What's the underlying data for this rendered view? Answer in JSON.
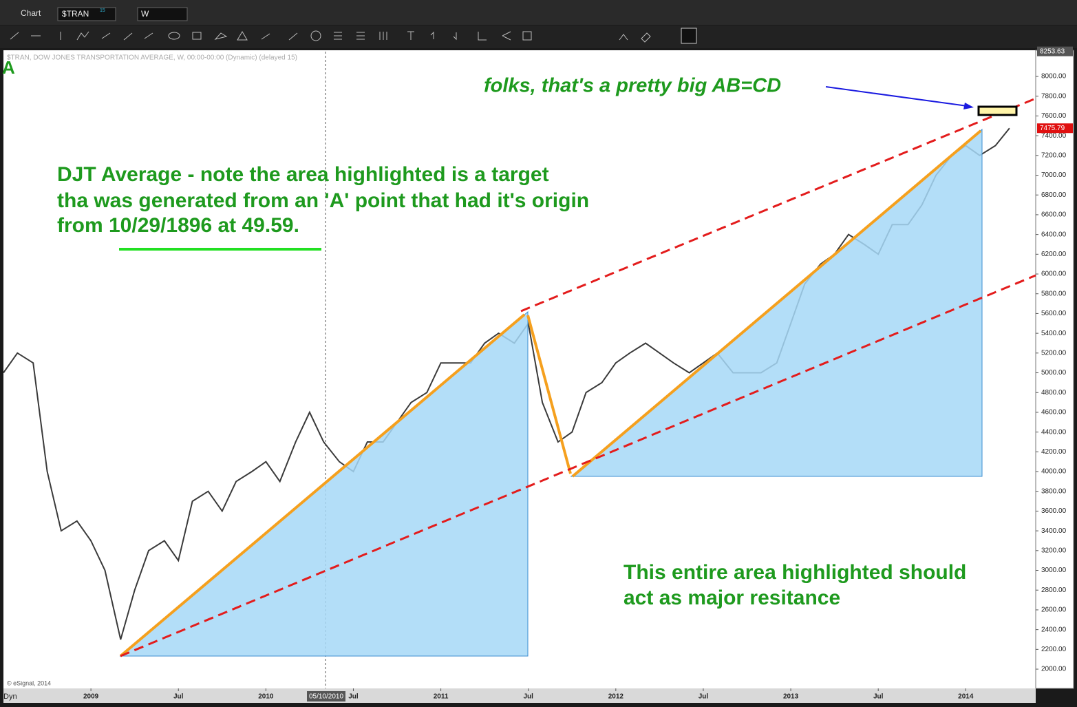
{
  "ui": {
    "window_title": "Chart",
    "symbol": "$TRAN",
    "symbol_badge": "15",
    "interval": "W",
    "mode": "Dyn",
    "corner_letter": "A",
    "copyright": "© eSignal, 2014",
    "cursor_date": "05/10/2010"
  },
  "chart_data": {
    "type": "line",
    "title": "$TRAN, DOW JONES TRANSPORTATION AVERAGE, W, 00:00-00:00 (Dynamic) (delayed 15)",
    "color": "#3a3a3a",
    "x": [
      2008.5,
      2008.58,
      2008.67,
      2008.75,
      2008.83,
      2008.92,
      2009.0,
      2009.08,
      2009.17,
      2009.25,
      2009.33,
      2009.42,
      2009.5,
      2009.58,
      2009.67,
      2009.75,
      2009.83,
      2009.92,
      2010.0,
      2010.08,
      2010.17,
      2010.25,
      2010.33,
      2010.42,
      2010.5,
      2010.58,
      2010.67,
      2010.75,
      2010.83,
      2010.92,
      2011.0,
      2011.08,
      2011.17,
      2011.25,
      2011.33,
      2011.42,
      2011.5,
      2011.58,
      2011.67,
      2011.75,
      2011.83,
      2011.92,
      2012.0,
      2012.08,
      2012.17,
      2012.25,
      2012.33,
      2012.42,
      2012.5,
      2012.58,
      2012.67,
      2012.75,
      2012.83,
      2012.92,
      2013.0,
      2013.08,
      2013.17,
      2013.25,
      2013.33,
      2013.42,
      2013.5,
      2013.58,
      2013.67,
      2013.75,
      2013.83,
      2013.92,
      2014.0,
      2014.08,
      2014.17,
      2014.25
    ],
    "values": [
      5000,
      5200,
      5100,
      4000,
      3400,
      3500,
      3300,
      3000,
      2300,
      2800,
      3200,
      3300,
      3100,
      3700,
      3800,
      3600,
      3900,
      4000,
      4100,
      3900,
      4300,
      4600,
      4300,
      4100,
      4000,
      4300,
      4300,
      4500,
      4700,
      4800,
      5100,
      5100,
      5100,
      5300,
      5400,
      5300,
      5500,
      4700,
      4300,
      4400,
      4800,
      4900,
      5100,
      5200,
      5300,
      5200,
      5100,
      5000,
      5100,
      5200,
      5000,
      5000,
      5000,
      5100,
      5500,
      5900,
      6100,
      6200,
      6400,
      6300,
      6200,
      6500,
      6500,
      6700,
      7000,
      7200,
      7300,
      7200,
      7300,
      7475.79
    ],
    "last_price": 7475.79,
    "high_price": 8253.63,
    "xlim": [
      2008.5,
      2014.4
    ],
    "ylim": [
      1805,
      8265
    ],
    "xticks": [
      {
        "value": 2009,
        "label": "2009"
      },
      {
        "value": 2009.5,
        "label": "Jul"
      },
      {
        "value": 2010,
        "label": "2010"
      },
      {
        "value": 2010.5,
        "label": "Jul"
      },
      {
        "value": 2011,
        "label": "2011"
      },
      {
        "value": 2011.5,
        "label": "Jul"
      },
      {
        "value": 2012,
        "label": "2012"
      },
      {
        "value": 2012.5,
        "label": "Jul"
      },
      {
        "value": 2013,
        "label": "2013"
      },
      {
        "value": 2013.5,
        "label": "Jul"
      },
      {
        "value": 2014,
        "label": "2014"
      }
    ],
    "yticks": [
      {
        "value": 2000,
        "label": "2000.00"
      },
      {
        "value": 2200,
        "label": "2200.00"
      },
      {
        "value": 2400,
        "label": "2400.00"
      },
      {
        "value": 2600,
        "label": "2600.00"
      },
      {
        "value": 2800,
        "label": "2800.00"
      },
      {
        "value": 3000,
        "label": "3000.00"
      },
      {
        "value": 3200,
        "label": "3200.00"
      },
      {
        "value": 3400,
        "label": "3400.00"
      },
      {
        "value": 3600,
        "label": "3600.00"
      },
      {
        "value": 3800,
        "label": "3800.00"
      },
      {
        "value": 4000,
        "label": "4000.00"
      },
      {
        "value": 4200,
        "label": "4200.00"
      },
      {
        "value": 4400,
        "label": "4400.00"
      },
      {
        "value": 4600,
        "label": "4600.00"
      },
      {
        "value": 4800,
        "label": "4800.00"
      },
      {
        "value": 5000,
        "label": "5000.00"
      },
      {
        "value": 5200,
        "label": "5200.00"
      },
      {
        "value": 5400,
        "label": "5400.00"
      },
      {
        "value": 5600,
        "label": "5600.00"
      },
      {
        "value": 5800,
        "label": "5800.00"
      },
      {
        "value": 6000,
        "label": "6000.00"
      },
      {
        "value": 6200,
        "label": "6200.00"
      },
      {
        "value": 6400,
        "label": "6400.00"
      },
      {
        "value": 6600,
        "label": "6600.00"
      },
      {
        "value": 6800,
        "label": "6800.00"
      },
      {
        "value": 7000,
        "label": "7000.00"
      },
      {
        "value": 7200,
        "label": "7200.00"
      },
      {
        "value": 7400,
        "label": "7400.00"
      },
      {
        "value": 7600,
        "label": "7600.00"
      },
      {
        "value": 7800,
        "label": "7800.00"
      },
      {
        "value": 8000,
        "label": "8000.00"
      }
    ],
    "annotations": [
      "folks, that's a pretty big AB=CD",
      "DJT Average - note the area highlighted is a target",
      "tha was generated from an 'A' point that had it's origin",
      "from 10/29/1896 at 49.59.",
      "This entire area highlighted should",
      "act as major resitance"
    ]
  }
}
